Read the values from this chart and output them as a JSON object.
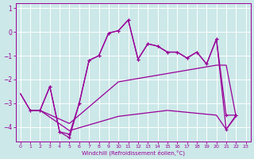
{
  "xlabel": "Windchill (Refroidissement éolien,°C)",
  "background_color": "#cce8e8",
  "grid_color": "#ffffff",
  "line_color": "#990099",
  "xlim": [
    -0.5,
    23.5
  ],
  "ylim": [
    -4.6,
    1.2
  ],
  "yticks": [
    1,
    0,
    -1,
    -2,
    -3,
    -4
  ],
  "xticks": [
    0,
    1,
    2,
    3,
    4,
    5,
    6,
    7,
    8,
    9,
    10,
    11,
    12,
    13,
    14,
    15,
    16,
    17,
    18,
    19,
    20,
    21,
    22,
    23
  ],
  "line1_x": [
    1,
    2,
    3,
    4,
    5,
    6,
    7,
    8,
    9,
    10,
    11,
    12,
    13,
    14,
    15,
    16,
    17,
    18,
    19,
    20,
    21,
    22
  ],
  "line1_y": [
    -3.3,
    -3.3,
    -2.3,
    -4.2,
    -4.3,
    -3.0,
    -1.2,
    -1.0,
    -0.05,
    0.05,
    0.5,
    -1.15,
    -0.5,
    -0.6,
    -0.85,
    -0.85,
    -1.1,
    -0.85,
    -1.35,
    -0.3,
    -3.5,
    -3.5
  ],
  "line2_x": [
    1,
    2,
    3,
    4,
    5,
    6,
    7,
    8,
    9,
    10,
    11,
    12,
    13,
    14,
    15,
    16,
    17,
    18,
    19,
    20,
    21,
    22
  ],
  "line2_y": [
    -3.3,
    -3.3,
    -2.3,
    -4.2,
    -4.45,
    -3.0,
    -1.2,
    -1.0,
    -0.05,
    0.05,
    0.5,
    -1.15,
    -0.5,
    -0.6,
    -0.85,
    -0.85,
    -1.1,
    -0.85,
    -1.35,
    -0.3,
    -4.1,
    -3.5
  ],
  "line3_x": [
    0,
    1,
    2,
    5,
    10,
    15,
    20,
    21,
    22
  ],
  "line3_y": [
    -2.6,
    -3.3,
    -3.3,
    -3.85,
    -2.1,
    -1.75,
    -1.4,
    -1.4,
    -3.55
  ],
  "line4_x": [
    0,
    1,
    2,
    5,
    10,
    15,
    20,
    21,
    22
  ],
  "line4_y": [
    -2.6,
    -3.3,
    -3.3,
    -4.15,
    -3.55,
    -3.3,
    -3.5,
    -4.1,
    -3.55
  ]
}
